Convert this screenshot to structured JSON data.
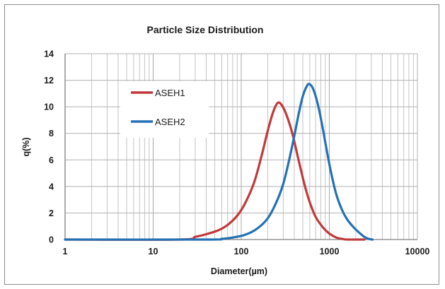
{
  "chart_data": {
    "type": "line",
    "title": "Particle Size Distribution",
    "xlabel": "Diameter(µm)",
    "ylabel": "q(%)",
    "x_scale": "log",
    "xlim": [
      1,
      10000
    ],
    "ylim": [
      0,
      14
    ],
    "x_ticks": [
      "1",
      "10",
      "100",
      "1000",
      "10000"
    ],
    "y_ticks": [
      "0",
      "2",
      "4",
      "6",
      "8",
      "10",
      "12",
      "14"
    ],
    "grid": true,
    "legend_position": "upper-left inside",
    "series": [
      {
        "name": "ASEH1",
        "color": "#c0393b",
        "points": [
          [
            1,
            0
          ],
          [
            20,
            0
          ],
          [
            30,
            0.2
          ],
          [
            40,
            0.4
          ],
          [
            55,
            0.7
          ],
          [
            70,
            1.1
          ],
          [
            90,
            1.8
          ],
          [
            110,
            2.7
          ],
          [
            140,
            4.3
          ],
          [
            170,
            6.3
          ],
          [
            200,
            8.2
          ],
          [
            230,
            9.6
          ],
          [
            260,
            10.3
          ],
          [
            290,
            10.1
          ],
          [
            330,
            9.3
          ],
          [
            380,
            8.0
          ],
          [
            440,
            6.2
          ],
          [
            520,
            4.2
          ],
          [
            600,
            2.8
          ],
          [
            700,
            1.7
          ],
          [
            850,
            0.9
          ],
          [
            1000,
            0.45
          ],
          [
            1200,
            0.15
          ],
          [
            1400,
            0.05
          ],
          [
            1600,
            0
          ],
          [
            2500,
            0
          ]
        ]
      },
      {
        "name": "ASEH2",
        "color": "#2471b5",
        "points": [
          [
            1,
            0
          ],
          [
            40,
            0
          ],
          [
            60,
            0.05
          ],
          [
            80,
            0.15
          ],
          [
            110,
            0.35
          ],
          [
            150,
            0.8
          ],
          [
            200,
            1.6
          ],
          [
            250,
            2.8
          ],
          [
            300,
            4.2
          ],
          [
            350,
            6.0
          ],
          [
            400,
            7.8
          ],
          [
            450,
            9.5
          ],
          [
            500,
            10.8
          ],
          [
            560,
            11.6
          ],
          [
            600,
            11.7
          ],
          [
            660,
            11.3
          ],
          [
            740,
            10.2
          ],
          [
            830,
            8.6
          ],
          [
            930,
            6.8
          ],
          [
            1050,
            5.0
          ],
          [
            1200,
            3.4
          ],
          [
            1400,
            2.2
          ],
          [
            1600,
            1.5
          ],
          [
            1900,
            0.9
          ],
          [
            2200,
            0.5
          ],
          [
            2500,
            0.2
          ],
          [
            2800,
            0.05
          ],
          [
            3100,
            0
          ]
        ]
      }
    ]
  }
}
